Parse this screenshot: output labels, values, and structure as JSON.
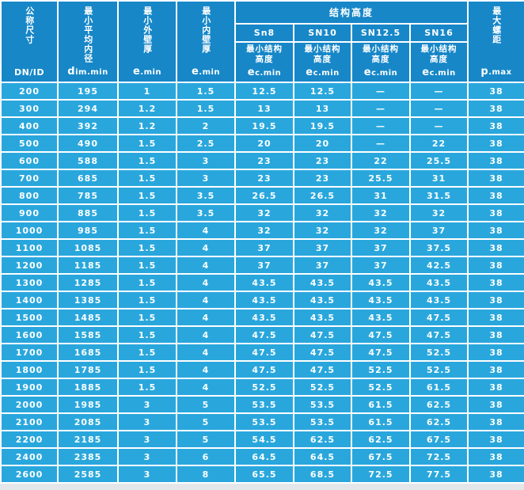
{
  "colors": {
    "header_bg": "#1787c8",
    "row_bg": "#29a7dd",
    "border": "#ffffff",
    "text": "#ffffff"
  },
  "header": {
    "col1": {
      "cn": "公称尺寸",
      "latin": "DN/ID"
    },
    "col2": {
      "cn": "最小平均内径",
      "latin_lead": "d",
      "latin_rest": "im.min"
    },
    "col3": {
      "cn": "最小外壁厚",
      "latin_lead": "e",
      "latin_rest": ".min"
    },
    "col4": {
      "cn": "最小内壁厚",
      "latin_lead": "e",
      "latin_rest": ".min"
    },
    "group": {
      "title": "结构高度",
      "subcols": [
        "Sn8",
        "SN10",
        "SN12.5",
        "SN16"
      ],
      "sub_cn": "最小结构\n高度",
      "latin_lead": "e",
      "latin_rest": "c.min"
    },
    "col9": {
      "cn": "最大螺距",
      "latin_lead": "p",
      "latin_rest": ".max"
    }
  },
  "rows": [
    [
      "200",
      "195",
      "1",
      "1.5",
      "12.5",
      "12.5",
      "—",
      "—",
      "38"
    ],
    [
      "300",
      "294",
      "1.2",
      "1.5",
      "13",
      "13",
      "—",
      "—",
      "38"
    ],
    [
      "400",
      "392",
      "1.2",
      "2",
      "19.5",
      "19.5",
      "—",
      "—",
      "38"
    ],
    [
      "500",
      "490",
      "1.5",
      "2.5",
      "20",
      "20",
      "—",
      "22",
      "38"
    ],
    [
      "600",
      "588",
      "1.5",
      "3",
      "23",
      "23",
      "22",
      "25.5",
      "38"
    ],
    [
      "700",
      "685",
      "1.5",
      "3",
      "23",
      "23",
      "25.5",
      "31",
      "38"
    ],
    [
      "800",
      "785",
      "1.5",
      "3.5",
      "26.5",
      "26.5",
      "31",
      "31.5",
      "38"
    ],
    [
      "900",
      "885",
      "1.5",
      "3.5",
      "32",
      "32",
      "32",
      "32",
      "38"
    ],
    [
      "1000",
      "985",
      "1.5",
      "4",
      "32",
      "32",
      "32",
      "37",
      "38"
    ],
    [
      "1100",
      "1085",
      "1.5",
      "4",
      "37",
      "37",
      "37",
      "37.5",
      "38"
    ],
    [
      "1200",
      "1185",
      "1.5",
      "4",
      "37",
      "37",
      "37",
      "42.5",
      "38"
    ],
    [
      "1300",
      "1285",
      "1.5",
      "4",
      "43.5",
      "43.5",
      "43.5",
      "43.5",
      "38"
    ],
    [
      "1400",
      "1385",
      "1.5",
      "4",
      "43.5",
      "43.5",
      "43.5",
      "43.5",
      "38"
    ],
    [
      "1500",
      "1485",
      "1.5",
      "4",
      "43.5",
      "43.5",
      "43.5",
      "47.5",
      "38"
    ],
    [
      "1600",
      "1585",
      "1.5",
      "4",
      "47.5",
      "47.5",
      "47.5",
      "47.5",
      "38"
    ],
    [
      "1700",
      "1685",
      "1.5",
      "4",
      "47.5",
      "47.5",
      "47.5",
      "52.5",
      "38"
    ],
    [
      "1800",
      "1785",
      "1.5",
      "4",
      "47.5",
      "47.5",
      "52.5",
      "52.5",
      "38"
    ],
    [
      "1900",
      "1885",
      "1.5",
      "4",
      "52.5",
      "52.5",
      "52.5",
      "61.5",
      "38"
    ],
    [
      "2000",
      "1985",
      "3",
      "5",
      "53.5",
      "53.5",
      "61.5",
      "62.5",
      "38"
    ],
    [
      "2100",
      "2085",
      "3",
      "5",
      "53.5",
      "53.5",
      "61.5",
      "62.5",
      "38"
    ],
    [
      "2200",
      "2185",
      "3",
      "5",
      "54.5",
      "62.5",
      "62.5",
      "67.5",
      "38"
    ],
    [
      "2400",
      "2385",
      "3",
      "6",
      "64.5",
      "64.5",
      "67.5",
      "72.5",
      "38"
    ],
    [
      "2600",
      "2585",
      "3",
      "8",
      "65.5",
      "68.5",
      "72.5",
      "77.5",
      "38"
    ]
  ]
}
